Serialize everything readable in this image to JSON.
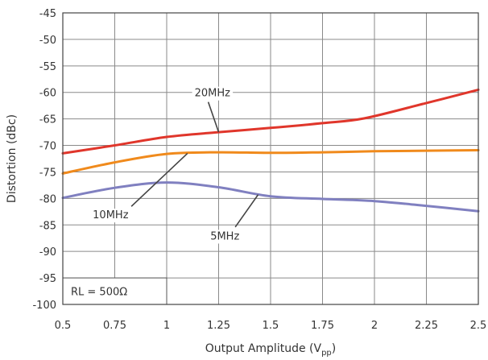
{
  "chart_data": {
    "type": "line",
    "xlabel_main": "Output Amplitude (V",
    "xlabel_sub": "pp",
    "xlabel_close": ")",
    "ylabel": "Distortion (dBc)",
    "xlim": [
      0.5,
      2.5
    ],
    "ylim": [
      -100,
      -45
    ],
    "xticks": [
      0.5,
      0.75,
      1,
      1.25,
      1.5,
      1.75,
      2,
      2.25,
      2.5
    ],
    "xtick_labels": [
      "0.5",
      "0.75",
      "1",
      "1.25",
      "1.5",
      "1.75",
      "2",
      "2.25",
      "2.5"
    ],
    "yticks": [
      -45,
      -50,
      -55,
      -60,
      -65,
      -70,
      -75,
      -80,
      -85,
      -90,
      -95,
      -100
    ],
    "ytick_labels": [
      "-45",
      "-50",
      "-55",
      "-60",
      "-65",
      "-70",
      "-75",
      "-80",
      "-85",
      "-90",
      "-95",
      "-100"
    ],
    "grid": true,
    "annotation_box": "RL = 500Ω",
    "series": [
      {
        "name": "20MHz",
        "color": "#e0362b",
        "x": [
          0.5,
          0.75,
          1,
          1.25,
          1.5,
          1.75,
          1.95,
          2.25,
          2.5
        ],
        "y": [
          -71.5,
          -70,
          -68.4,
          -67.5,
          -66.7,
          -65.8,
          -64.9,
          -62,
          -59.5
        ]
      },
      {
        "name": "10MHz",
        "color": "#f08a1c",
        "x": [
          0.5,
          0.75,
          1,
          1.25,
          1.5,
          1.75,
          2,
          2.25,
          2.5
        ],
        "y": [
          -75.3,
          -73.2,
          -71.6,
          -71.3,
          -71.4,
          -71.3,
          -71.1,
          -71,
          -70.9
        ]
      },
      {
        "name": "5MHz",
        "color": "#8080c0",
        "x": [
          0.5,
          0.75,
          1,
          1.25,
          1.5,
          1.75,
          2,
          2.25,
          2.5
        ],
        "y": [
          -79.9,
          -78,
          -77,
          -77.9,
          -79.6,
          -80.1,
          -80.5,
          -81.4,
          -82.4
        ]
      }
    ],
    "labels": [
      {
        "text": "20MHz",
        "x": 1.22,
        "y": -60
      },
      {
        "text": "10MHz",
        "x": 0.73,
        "y": -83
      },
      {
        "text": "5MHz",
        "x": 1.28,
        "y": -87
      }
    ]
  }
}
